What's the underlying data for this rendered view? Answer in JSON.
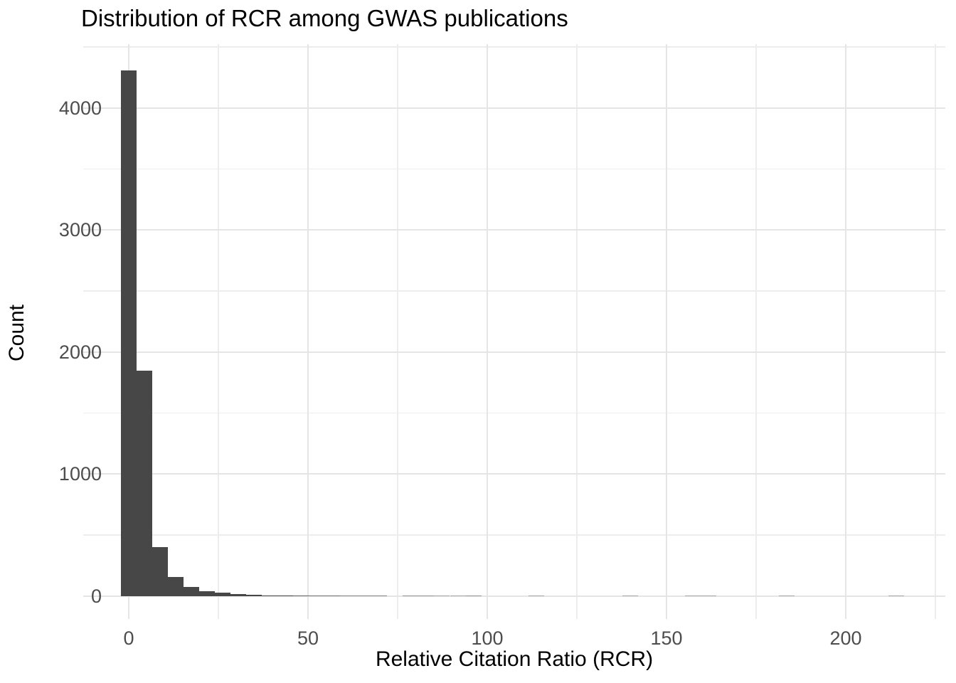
{
  "chart_data": {
    "type": "bar",
    "subtype": "histogram",
    "title": "Distribution of RCR among GWAS publications",
    "xlabel": "Relative Citation Ratio (RCR)",
    "ylabel": "Count",
    "x_ticks": [
      0,
      50,
      100,
      150,
      200
    ],
    "x_minor_ticks": [
      25,
      75,
      125,
      175,
      225
    ],
    "y_ticks": [
      0,
      1000,
      2000,
      3000,
      4000
    ],
    "y_minor_ticks": [
      500,
      1500,
      2500,
      3500,
      4500
    ],
    "xlim": [
      -12.7,
      228
    ],
    "ylim": [
      -216,
      4523
    ],
    "grid": true,
    "legend": false,
    "bin_width": 4.37,
    "bins": [
      [
        0,
        4310
      ],
      [
        4.37,
        1845
      ],
      [
        8.74,
        402
      ],
      [
        13.11,
        157
      ],
      [
        17.48,
        78
      ],
      [
        21.85,
        42
      ],
      [
        26.22,
        27
      ],
      [
        30.59,
        16
      ],
      [
        34.96,
        11
      ],
      [
        39.33,
        8
      ],
      [
        43.7,
        6
      ],
      [
        48.07,
        5
      ],
      [
        52.44,
        4
      ],
      [
        56.81,
        4
      ],
      [
        61.18,
        3
      ],
      [
        65.55,
        3
      ],
      [
        69.92,
        3
      ],
      [
        78.66,
        2
      ],
      [
        83.03,
        2
      ],
      [
        87.4,
        1
      ],
      [
        91.77,
        1
      ],
      [
        96.14,
        2
      ],
      [
        113.62,
        1
      ],
      [
        139.84,
        1
      ],
      [
        157.32,
        1
      ],
      [
        161.69,
        1
      ],
      [
        183.54,
        1
      ],
      [
        214.13,
        1
      ]
    ],
    "colors": {
      "bar": "#474747",
      "grid_major": "#e5e5e5",
      "grid_minor": "#ededed",
      "tick_text": "#4d4d4d",
      "title_text": "#000000",
      "background": "#ffffff"
    }
  }
}
